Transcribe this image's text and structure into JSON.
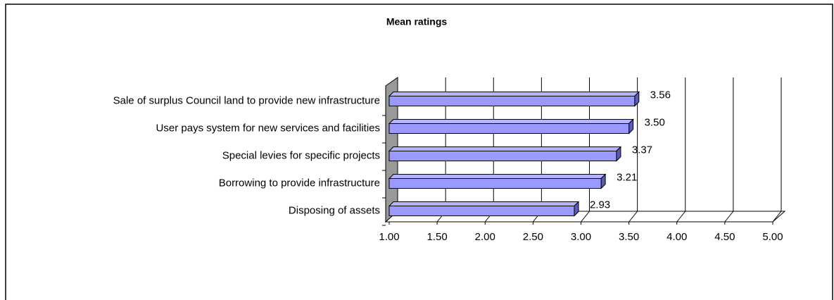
{
  "chart_data": {
    "type": "bar",
    "orientation": "horizontal",
    "title": "Mean ratings",
    "categories": [
      "Sale of surplus Council land to provide new infrastructure",
      "User pays system for new services and facilities",
      "Special levies for specific projects",
      "Borrowing to provide infrastructure",
      "Disposing of assets"
    ],
    "values": [
      3.56,
      3.5,
      3.37,
      3.21,
      2.93
    ],
    "value_labels": [
      "3.56",
      "3.50",
      "3.37",
      "3.21",
      "2.93"
    ],
    "color": "#9999ff",
    "xlim": [
      1,
      5
    ],
    "xticks": [
      {
        "value": 1,
        "label": "1.00"
      },
      {
        "value": 1.5,
        "label": "1.50"
      },
      {
        "value": 2,
        "label": "2.00"
      },
      {
        "value": 2.5,
        "label": "2.50"
      },
      {
        "value": 3,
        "label": "3.00"
      },
      {
        "value": 3.5,
        "label": "3.50"
      },
      {
        "value": 4,
        "label": "4.00"
      },
      {
        "value": 4.5,
        "label": "4.50"
      },
      {
        "value": 5,
        "label": "5.00"
      }
    ],
    "grid": true
  }
}
